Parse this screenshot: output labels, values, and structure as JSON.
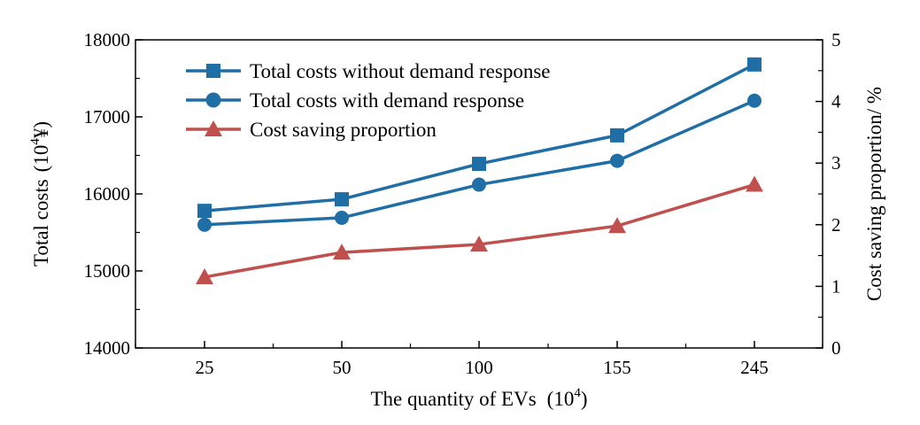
{
  "chart_data": {
    "type": "line",
    "xlabel": "The quantity of EVs",
    "xlabel_unit_base": "10",
    "xlabel_unit_exp": "4",
    "categories": [
      "25",
      "50",
      "100",
      "155",
      "245"
    ],
    "ylabel_left": "Total costs",
    "ylabel_left_unit_base": "10",
    "ylabel_left_unit_exp": "4",
    "ylabel_left_unit_symbol": "¥",
    "ylabel_right": "Cost saving proportion/ %",
    "ylim_left": [
      14000,
      18000
    ],
    "yticks_left": [
      "14000",
      "15000",
      "16000",
      "17000",
      "18000"
    ],
    "ylim_right": [
      0,
      5
    ],
    "yticks_right": [
      "0",
      "1",
      "2",
      "3",
      "4",
      "5"
    ],
    "legend_position": "top-left",
    "grid": false,
    "series": [
      {
        "name": "Total costs without demand response",
        "axis": "left",
        "marker": "square",
        "color": "#1f6fa6",
        "values": [
          15780,
          15930,
          16390,
          16760,
          17680
        ]
      },
      {
        "name": "Total costs with demand response",
        "axis": "left",
        "marker": "circle",
        "color": "#1f6fa6",
        "values": [
          15600,
          15690,
          16120,
          16430,
          17210
        ]
      },
      {
        "name": "Cost saving proportion",
        "axis": "right",
        "marker": "triangle",
        "color": "#c0504d",
        "values": [
          1.15,
          1.55,
          1.68,
          1.98,
          2.65
        ]
      }
    ]
  }
}
